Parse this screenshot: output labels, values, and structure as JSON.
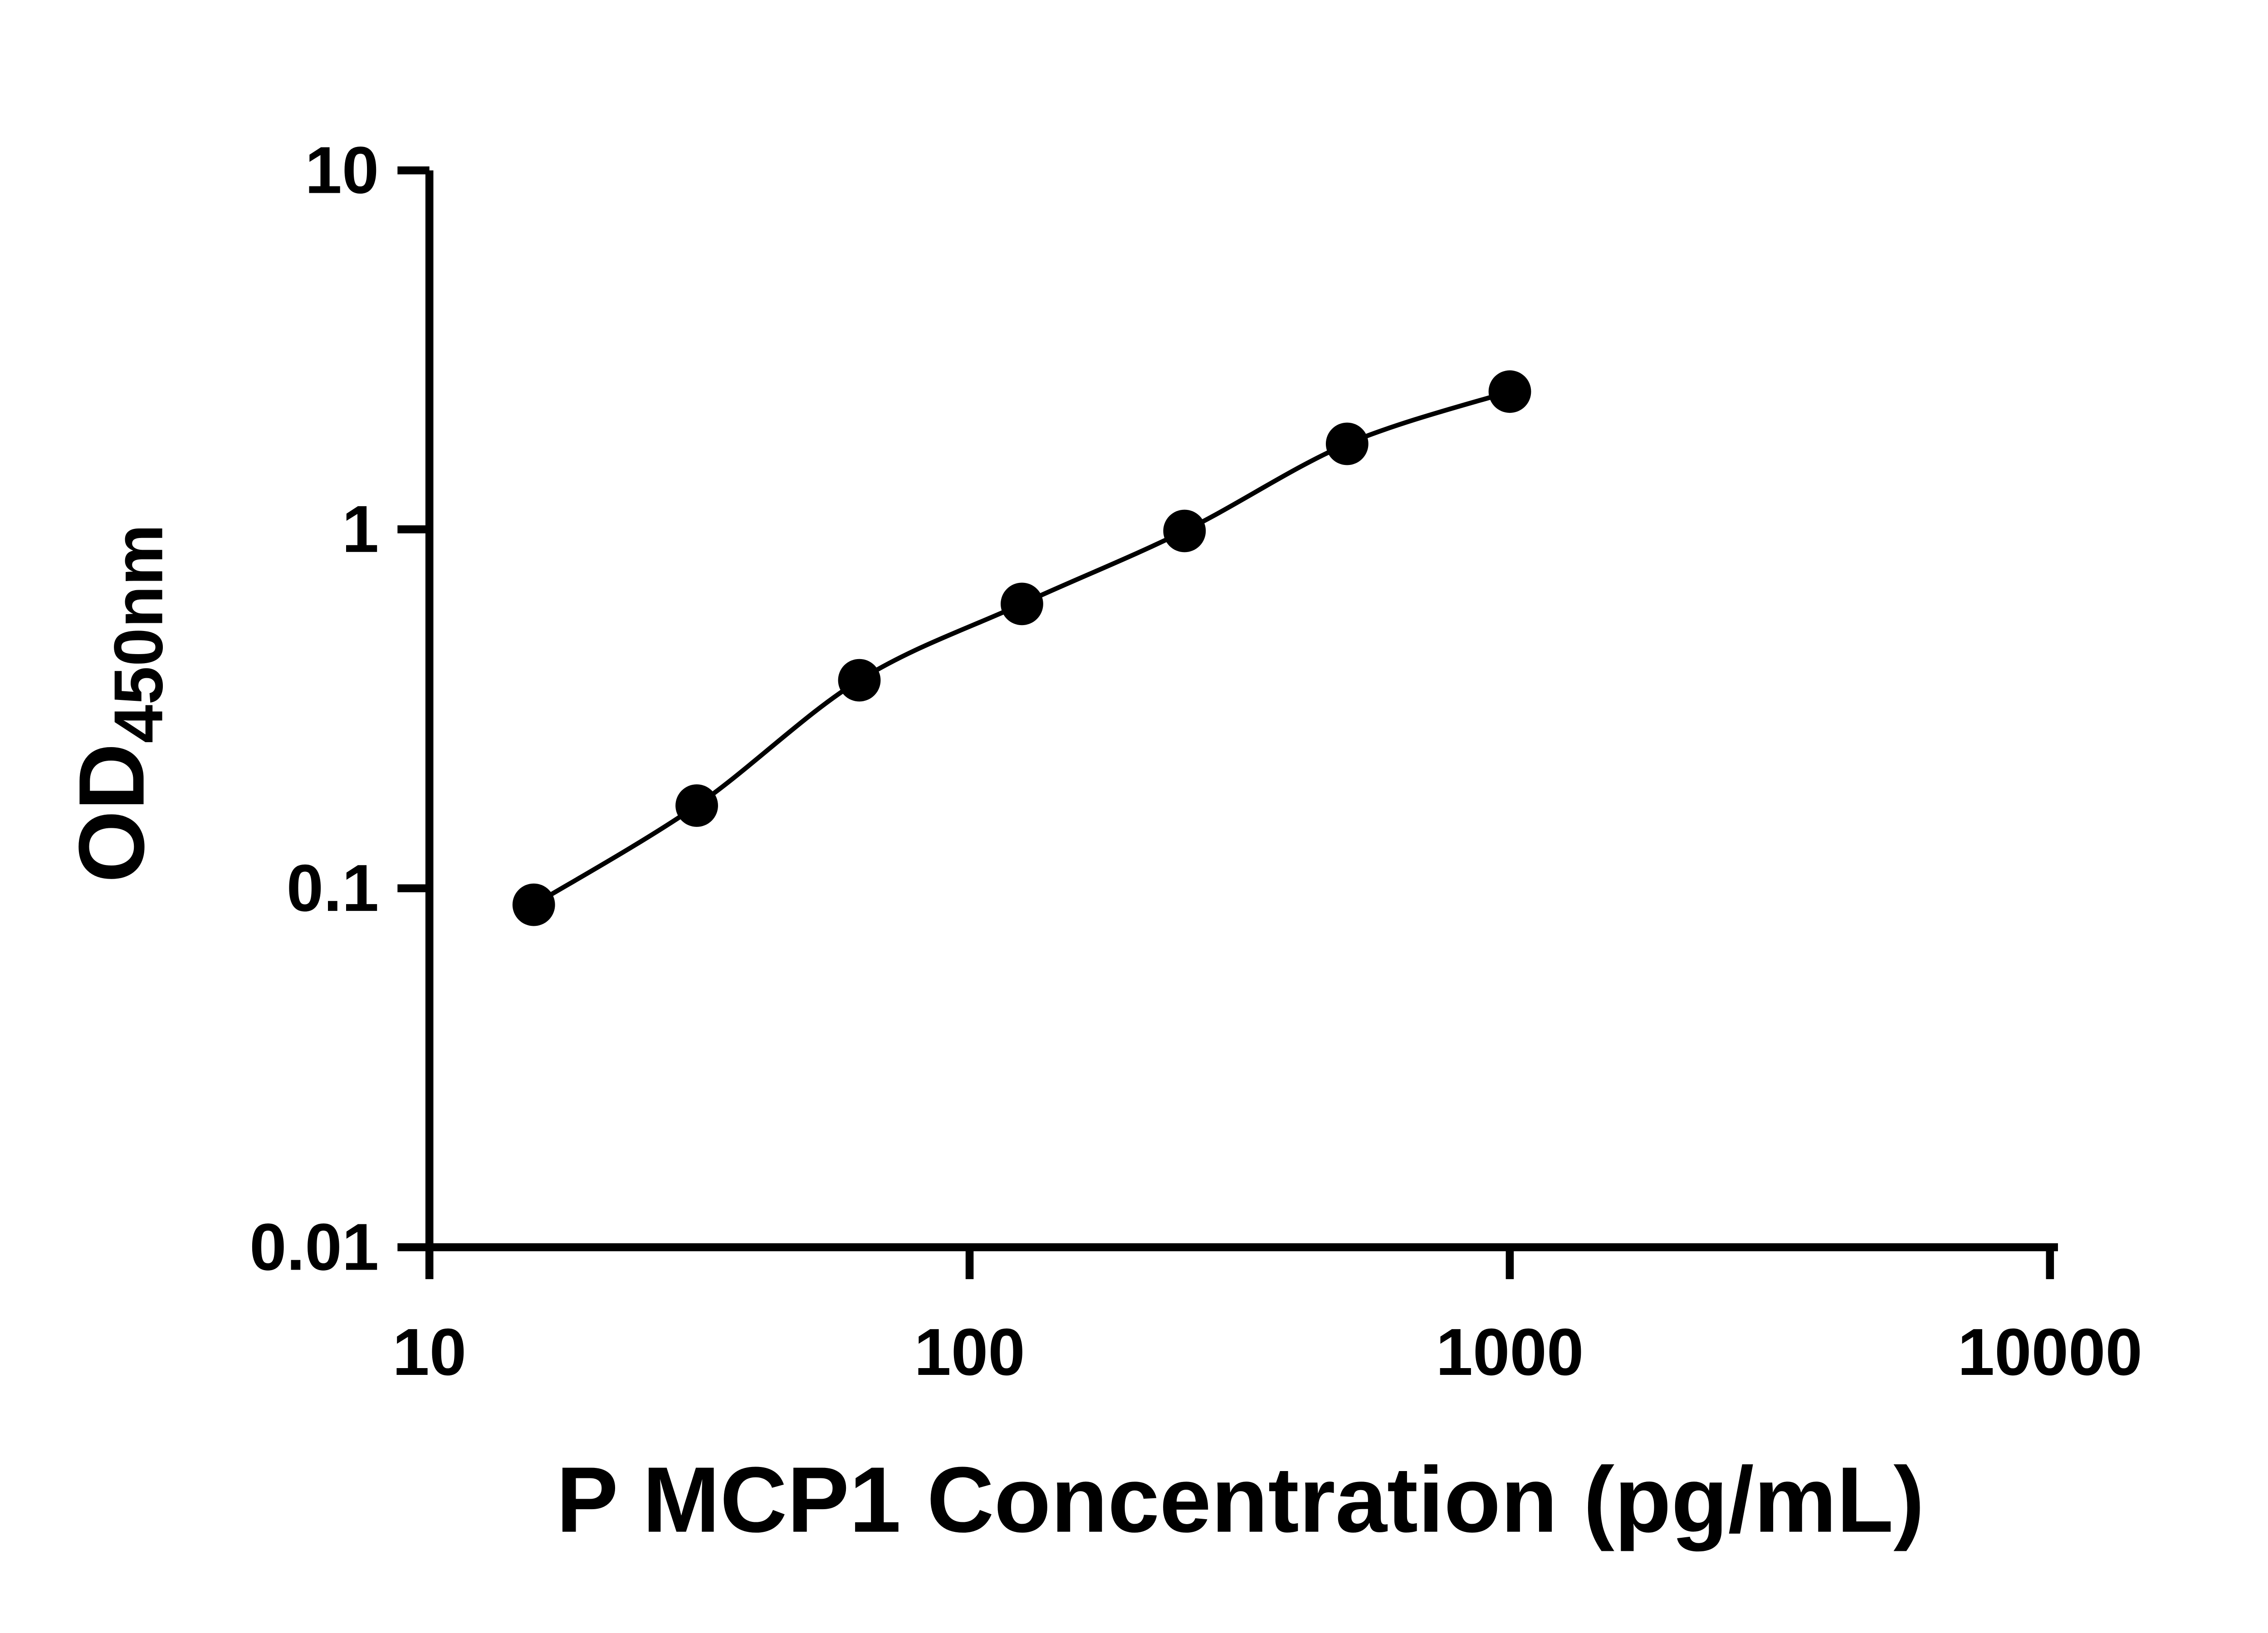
{
  "figure": {
    "background": "#ffffff"
  },
  "chart_data": {
    "type": "scatter",
    "title": "",
    "xlabel": "P MCP1 Concentration (pg/mL)",
    "ylabel": {
      "base": "OD",
      "subscript": "450nm",
      "full": "OD450nm"
    },
    "x_scale": "log",
    "y_scale": "log",
    "xlim": [
      10,
      10000
    ],
    "ylim": [
      0.01,
      10
    ],
    "x_ticks": [
      10,
      100,
      1000,
      10000
    ],
    "x_tick_labels": [
      "10",
      "100",
      "1000",
      "10000"
    ],
    "y_ticks": [
      0.01,
      0.1,
      1,
      10
    ],
    "y_tick_labels": [
      "0.01",
      "0.1",
      "1",
      "10"
    ],
    "grid": false,
    "legend": null,
    "axis_color": "#000000",
    "series": [
      {
        "x": [
          15.6,
          31.25,
          62.5,
          125,
          250,
          500,
          1000
        ],
        "y": [
          0.09,
          0.17,
          0.38,
          0.62,
          0.99,
          1.73,
          2.42
        ],
        "marker": "filled-circle",
        "marker_color": "#000000",
        "line_color": "#000000",
        "curve": "smooth"
      }
    ]
  }
}
